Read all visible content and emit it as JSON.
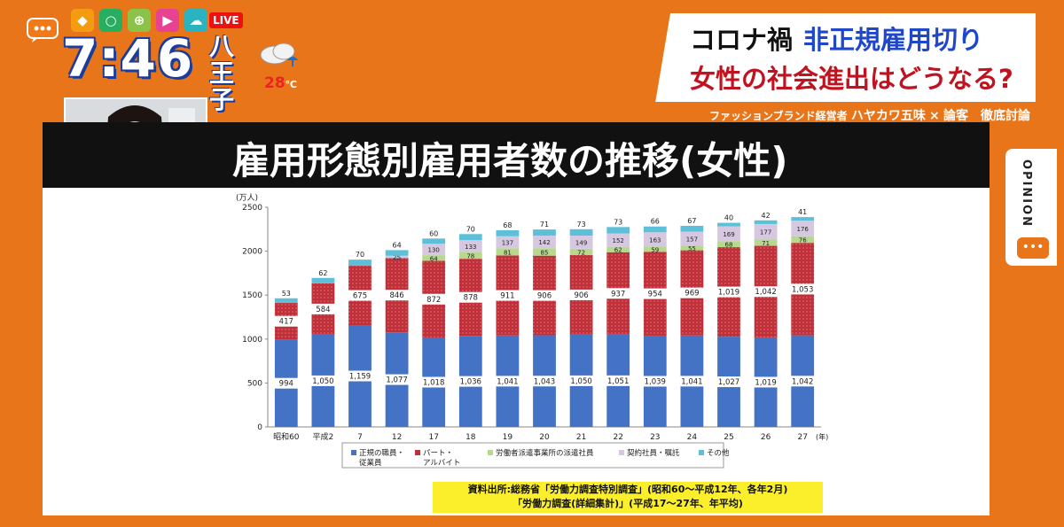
{
  "header": {
    "clock": "7:46",
    "city": "八王子",
    "temperature": "28",
    "temperature_unit": "℃",
    "live_badge": "LIVE"
  },
  "headline": {
    "line1_a": "コロナ禍",
    "line1_b": "非正規雇用切り",
    "line2": "女性の社会進出はどうなる?",
    "byline_a": "ファッションブランド経営者",
    "byline_name": "ハヤカワ五味",
    "byline_x": "×",
    "byline_b": "論客　徹底討論"
  },
  "side_tab": {
    "label": "OPINION"
  },
  "slide": {
    "title": "雇用形態別雇用者数の推移(女性)",
    "source_line1": "資料出所:総務省「労働力調査特別調査」(昭和60〜平成12年、各年2月)",
    "source_line2": "「労働力調査(詳細集計)」(平成17〜27年、年平均)"
  },
  "chart_data": {
    "type": "bar",
    "stacked": true,
    "unit_label": "(万人)",
    "x_unit_label": "(年)",
    "categories": [
      "昭和60",
      "平成2",
      "7",
      "12",
      "17",
      "18",
      "19",
      "20",
      "21",
      "22",
      "23",
      "24",
      "25",
      "26",
      "27"
    ],
    "ylim": [
      0,
      2500
    ],
    "yticks": [
      0,
      500,
      1000,
      1500,
      2000,
      2500
    ],
    "series": [
      {
        "name": "正規の職員・従業員",
        "color": "#4472c4",
        "pattern": "plain",
        "values": [
          994,
          1050,
          1159,
          1077,
          1018,
          1036,
          1041,
          1043,
          1050,
          1051,
          1039,
          1041,
          1027,
          1019,
          1042
        ],
        "labels": [
          "994",
          "1,050",
          "1,159",
          "1,077",
          "1,018",
          "1,036",
          "1,041",
          "1,043",
          "1,050",
          "1,051",
          "1,039",
          "1,041",
          "1,027",
          "1,019",
          "1,042"
        ]
      },
      {
        "name": "パート・アルバイト",
        "color": "#c0303a",
        "pattern": "dots",
        "values": [
          417,
          584,
          675,
          846,
          872,
          878,
          911,
          906,
          906,
          937,
          954,
          969,
          1019,
          1042,
          1053
        ],
        "labels": [
          "417",
          "584",
          "675",
          "846",
          "872",
          "878",
          "911",
          "906",
          "906",
          "937",
          "954",
          "969",
          "1,019",
          "1,042",
          "1,053"
        ]
      },
      {
        "name": "労働者派遣事業所の派遣社員",
        "color": "#b7d98c",
        "pattern": "plain",
        "values": [
          0,
          0,
          0,
          0,
          64,
          78,
          81,
          85,
          72,
          62,
          59,
          55,
          68,
          71,
          76
        ],
        "labels": [
          "",
          "",
          "",
          "",
          "64",
          "78",
          "81",
          "85",
          "72",
          "62",
          "59",
          "55",
          "68",
          "71",
          "76"
        ]
      },
      {
        "name": "契約社員・嘱託",
        "color": "#d7c8e2",
        "pattern": "plain",
        "values": [
          0,
          0,
          0,
          25,
          130,
          133,
          137,
          142,
          149,
          152,
          163,
          157,
          169,
          177,
          176
        ],
        "labels": [
          "",
          "",
          "",
          "25",
          "130",
          "133",
          "137",
          "142",
          "149",
          "152",
          "163",
          "157",
          "169",
          "177",
          "176"
        ]
      },
      {
        "name": "その他",
        "color": "#5ec0d8",
        "pattern": "plain",
        "values": [
          53,
          62,
          70,
          64,
          60,
          70,
          68,
          71,
          73,
          73,
          66,
          67,
          40,
          42,
          41
        ],
        "labels": [
          "53",
          "62",
          "70",
          "64",
          "60",
          "70",
          "68",
          "71",
          "73",
          "73",
          "66",
          "67",
          "40",
          "42",
          "41"
        ]
      }
    ]
  }
}
